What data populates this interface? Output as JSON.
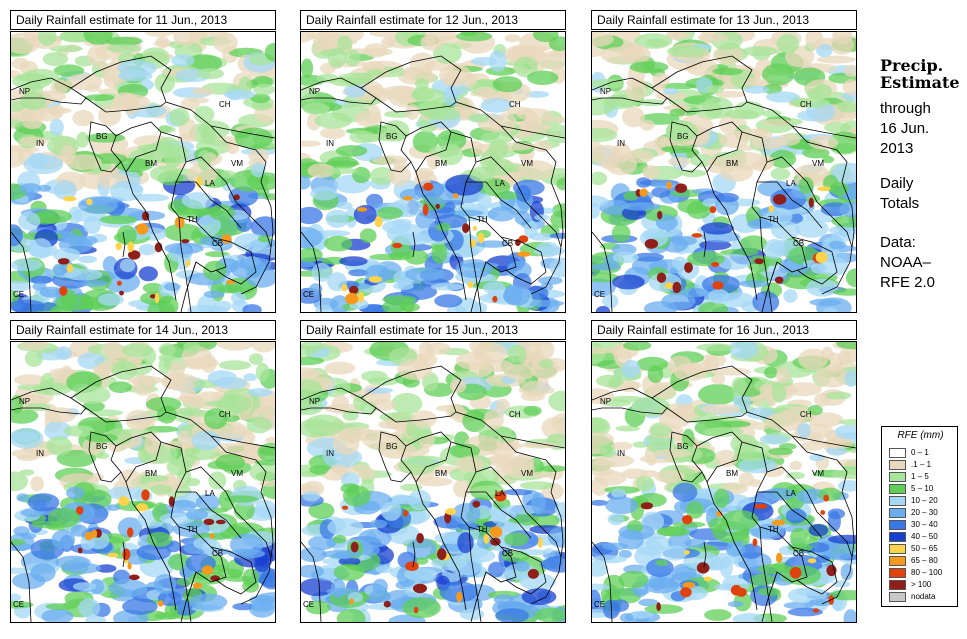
{
  "panels": [
    {
      "title": "Daily Rainfall estimate for  11 Jun., 2013"
    },
    {
      "title": "Daily Rainfall estimate for  12 Jun., 2013"
    },
    {
      "title": "Daily Rainfall estimate for  13 Jun., 2013"
    },
    {
      "title": "Daily Rainfall estimate for  14 Jun., 2013"
    },
    {
      "title": "Daily Rainfall estimate for  15 Jun., 2013"
    },
    {
      "title": "Daily Rainfall estimate for  16 Jun., 2013"
    }
  ],
  "map_labels": {
    "np": "NP",
    "ch": "CH",
    "in": "IN",
    "bg": "BG",
    "bm": "BM",
    "vm": "VM",
    "la": "LA",
    "th": "TH",
    "cb": "CB",
    "ce": "CE"
  },
  "sidebar": {
    "heading_line1": "Precip.",
    "heading_line2": "Estimate",
    "through": "through",
    "date_line1": "16 Jun.",
    "date_line2": "2013",
    "totals_line1": "Daily",
    "totals_line2": "Totals",
    "data_line1": "Data:",
    "data_line2": "NOAA–",
    "data_line3": "RFE 2.0"
  },
  "legend": {
    "title": "RFE (mm)",
    "items": [
      {
        "label": "0 – 1",
        "color": "#ffffff"
      },
      {
        "label": ".1 – 1",
        "color": "#e8d8bc"
      },
      {
        "label": "1 – 5",
        "color": "#a8e49a"
      },
      {
        "label": "5 – 10",
        "color": "#5fcf57"
      },
      {
        "label": "10 – 20",
        "color": "#a6d8f5"
      },
      {
        "label": "20 – 30",
        "color": "#6baef0"
      },
      {
        "label": "30 – 40",
        "color": "#3a78e6"
      },
      {
        "label": "40 – 50",
        "color": "#1740d0"
      },
      {
        "label": "50 – 65",
        "color": "#ffd34a"
      },
      {
        "label": "65 – 80",
        "color": "#f59a1c"
      },
      {
        "label": "80 – 100",
        "color": "#e0420e"
      },
      {
        "label": "> 100",
        "color": "#8f1f18"
      },
      {
        "label": "nodata",
        "color": "#c8c8c8"
      }
    ]
  }
}
